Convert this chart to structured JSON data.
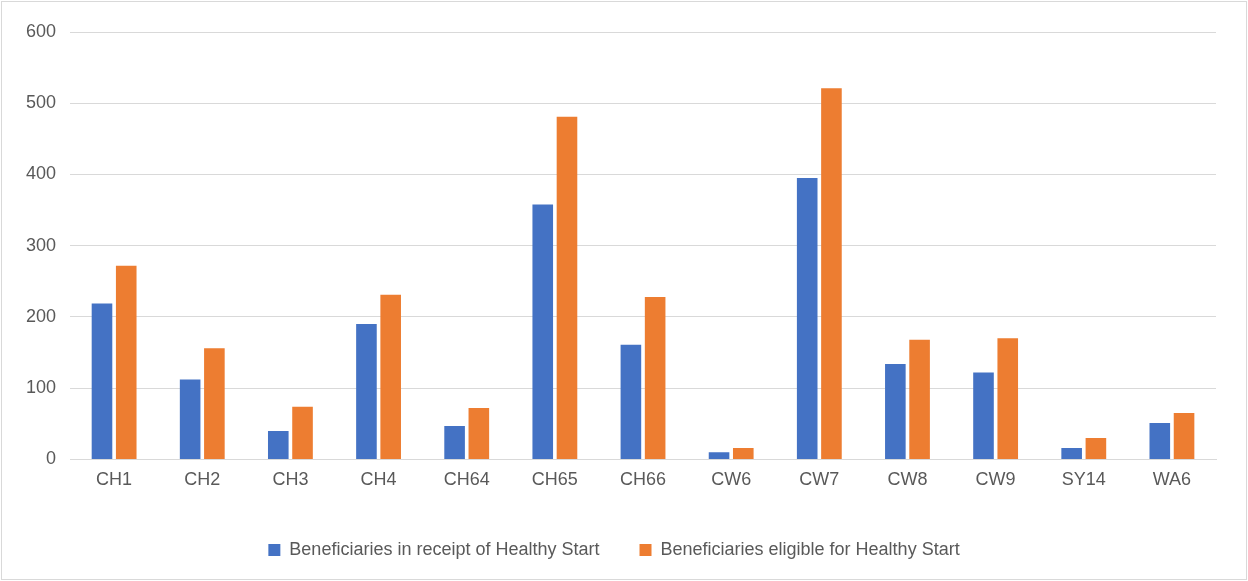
{
  "chart_data": {
    "type": "bar",
    "categories": [
      "CH1",
      "CH2",
      "CH3",
      "CH4",
      "CH64",
      "CH65",
      "CH66",
      "CW6",
      "CW7",
      "CW8",
      "CW9",
      "SY14",
      "WA6"
    ],
    "series": [
      {
        "name": "Beneficiaries in receipt of Healthy Start",
        "color": "#4472c4",
        "values": [
          219,
          112,
          40,
          190,
          47,
          358,
          161,
          10,
          395,
          134,
          122,
          16,
          51
        ]
      },
      {
        "name": "Beneficiaries eligible for Healthy Start",
        "color": "#ed7d31",
        "values": [
          272,
          156,
          74,
          231,
          72,
          481,
          228,
          16,
          521,
          168,
          170,
          30,
          65
        ]
      }
    ],
    "ylim": [
      0,
      600
    ],
    "yticks": [
      0,
      100,
      200,
      300,
      400,
      500,
      600
    ],
    "grid": "y",
    "legend": "bottom"
  }
}
